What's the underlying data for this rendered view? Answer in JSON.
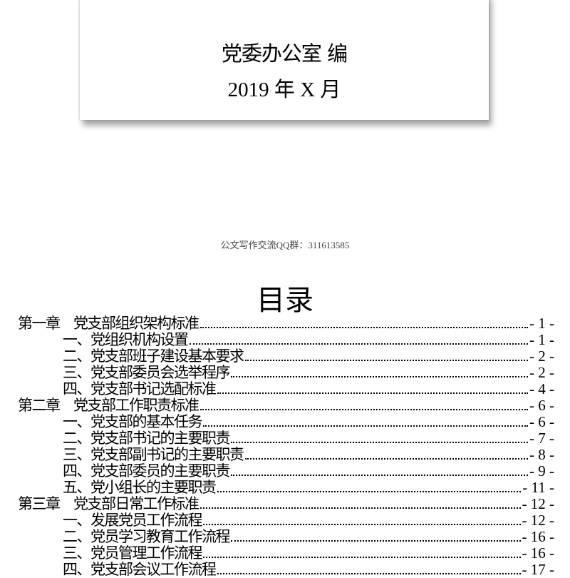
{
  "cover": {
    "editor": "党委办公室  编",
    "date": "2019 年 X 月"
  },
  "footer_note": "公文写作交流QQ群：311613585",
  "toc": {
    "title": "目录",
    "entries": [
      {
        "level": 1,
        "label": "第一章　党支部组织架构标准",
        "page": "- 1 -"
      },
      {
        "level": 2,
        "label": "一、党组织机构设置",
        "page": "- 1 -"
      },
      {
        "level": 2,
        "label": "二、党支部班子建设基本要求",
        "page": "- 2 -"
      },
      {
        "level": 2,
        "label": "三、党支部委员会选举程序",
        "page": "- 2 -"
      },
      {
        "level": 2,
        "label": "四、党支部书记选配标准",
        "page": "- 4 -"
      },
      {
        "level": 1,
        "label": "第二章　党支部工作职责标准",
        "page": "- 6 -"
      },
      {
        "level": 2,
        "label": "一、党支部的基本任务",
        "page": "- 6 -"
      },
      {
        "level": 2,
        "label": "二、党支部书记的主要职责",
        "page": "- 7 -"
      },
      {
        "level": 2,
        "label": "三、党支部副书记的主要职责",
        "page": "- 8 -"
      },
      {
        "level": 2,
        "label": "四、党支部委员的主要职责",
        "page": "- 9 -"
      },
      {
        "level": 2,
        "label": "五、党小组长的主要职责",
        "page": "- 11 -"
      },
      {
        "level": 1,
        "label": "第三章　党支部日常工作标准",
        "page": "- 12 -"
      },
      {
        "level": 2,
        "label": "一、发展党员工作流程",
        "page": "- 12 -"
      },
      {
        "level": 2,
        "label": "二、党员学习教育工作流程",
        "page": "- 16 -"
      },
      {
        "level": 2,
        "label": "三、党员管理工作流程",
        "page": "- 16 -"
      },
      {
        "level": 2,
        "label": "四、党支部会议工作流程",
        "page": "- 17 -"
      }
    ]
  }
}
